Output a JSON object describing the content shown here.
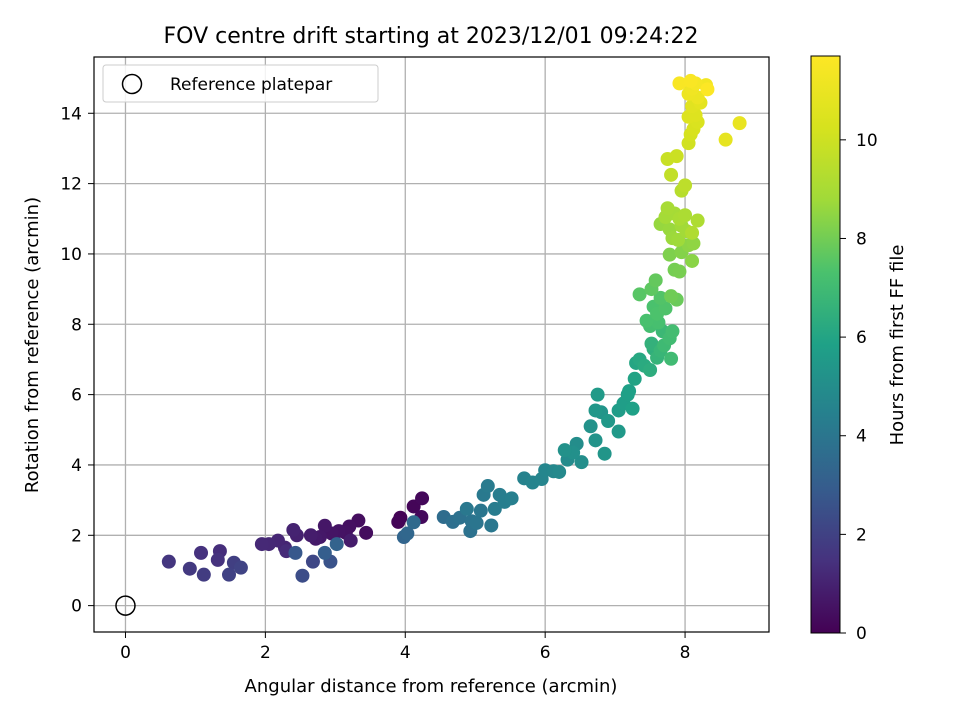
{
  "chart_data": {
    "type": "scatter",
    "title": "FOV centre drift starting at 2023/12/01 09:24:22",
    "xlabel": "Angular distance from reference (arcmin)",
    "ylabel": "Rotation from reference (arcmin)",
    "xlim": [
      -0.45,
      9.2
    ],
    "ylim": [
      -0.75,
      15.6
    ],
    "xticks": [
      0,
      2,
      4,
      6,
      8
    ],
    "yticks": [
      0,
      2,
      4,
      6,
      8,
      10,
      12,
      14
    ],
    "grid": true,
    "legend": {
      "position": "top-left",
      "entries": [
        "Reference platepar"
      ]
    },
    "reference_point": {
      "x": 0,
      "y": 0,
      "marker": "open-circle"
    },
    "colorbar": {
      "label": "Hours from first FF file",
      "range": [
        0,
        11.7
      ],
      "ticks": [
        0,
        2,
        4,
        6,
        8,
        10
      ],
      "colormap": "viridis"
    },
    "series": [
      {
        "columns": [
          "x",
          "y",
          "hours"
        ],
        "points": [
          [
            3.93,
            2.5,
            0.05
          ],
          [
            3.9,
            2.38,
            0.1
          ],
          [
            4.12,
            2.82,
            0.15
          ],
          [
            4.24,
            3.05,
            0.2
          ],
          [
            4.23,
            2.52,
            0.25
          ],
          [
            3.44,
            2.07,
            0.35
          ],
          [
            3.33,
            2.42,
            0.4
          ],
          [
            3.2,
            2.25,
            0.45
          ],
          [
            3.15,
            2.07,
            0.5
          ],
          [
            3.05,
            2.12,
            0.55
          ],
          [
            2.95,
            2.05,
            0.6
          ],
          [
            2.85,
            2.27,
            0.65
          ],
          [
            2.78,
            1.95,
            0.7
          ],
          [
            2.72,
            1.9,
            0.75
          ],
          [
            3.22,
            1.85,
            0.8
          ],
          [
            2.65,
            2.0,
            0.85
          ],
          [
            2.45,
            2.0,
            0.95
          ],
          [
            2.4,
            2.15,
            1.0
          ],
          [
            2.28,
            1.65,
            1.05
          ],
          [
            2.18,
            1.85,
            1.1
          ],
          [
            2.05,
            1.75,
            1.15
          ],
          [
            1.95,
            1.75,
            1.2
          ],
          [
            2.3,
            1.55,
            1.25
          ],
          [
            1.35,
            1.55,
            1.35
          ],
          [
            1.08,
            1.5,
            1.45
          ],
          [
            1.32,
            1.3,
            1.5
          ],
          [
            0.62,
            1.25,
            1.6
          ],
          [
            0.92,
            1.05,
            1.7
          ],
          [
            1.12,
            0.88,
            1.8
          ],
          [
            1.55,
            1.22,
            1.9
          ],
          [
            1.48,
            0.88,
            2.0
          ],
          [
            1.65,
            1.08,
            2.05
          ],
          [
            2.68,
            1.25,
            2.2
          ],
          [
            2.53,
            0.85,
            2.4
          ],
          [
            2.93,
            1.25,
            2.6
          ],
          [
            2.43,
            1.5,
            2.8
          ],
          [
            2.85,
            1.5,
            3.0
          ],
          [
            3.02,
            1.75,
            3.2
          ],
          [
            3.98,
            1.95,
            3.3
          ],
          [
            4.03,
            2.05,
            3.4
          ],
          [
            4.12,
            2.37,
            3.5
          ],
          [
            4.55,
            2.52,
            3.6
          ],
          [
            4.68,
            2.38,
            3.7
          ],
          [
            4.78,
            2.5,
            3.8
          ],
          [
            4.93,
            2.12,
            3.85
          ],
          [
            4.95,
            2.4,
            3.9
          ],
          [
            5.02,
            2.35,
            3.95
          ],
          [
            5.08,
            2.7,
            4.0
          ],
          [
            5.23,
            2.28,
            4.05
          ],
          [
            4.88,
            2.75,
            4.1
          ],
          [
            5.12,
            3.15,
            4.15
          ],
          [
            5.18,
            3.4,
            4.2
          ],
          [
            5.28,
            2.75,
            4.25
          ],
          [
            5.35,
            3.15,
            4.3
          ],
          [
            5.42,
            2.95,
            4.35
          ],
          [
            5.52,
            3.05,
            4.4
          ],
          [
            5.7,
            3.62,
            4.5
          ],
          [
            5.82,
            3.5,
            4.6
          ],
          [
            5.95,
            3.6,
            4.65
          ],
          [
            6.0,
            3.85,
            4.7
          ],
          [
            6.12,
            3.82,
            4.75
          ],
          [
            6.2,
            3.8,
            4.8
          ],
          [
            6.32,
            4.15,
            4.9
          ],
          [
            6.45,
            4.6,
            5.0
          ],
          [
            6.52,
            4.08,
            5.05
          ],
          [
            6.4,
            4.35,
            5.1
          ],
          [
            6.28,
            4.42,
            5.15
          ],
          [
            6.65,
            5.1,
            5.2
          ],
          [
            6.72,
            4.7,
            5.25
          ],
          [
            6.8,
            5.5,
            5.3
          ],
          [
            6.85,
            4.32,
            5.35
          ],
          [
            6.72,
            5.55,
            5.4
          ],
          [
            6.9,
            5.25,
            5.45
          ],
          [
            7.05,
            4.95,
            5.5
          ],
          [
            6.75,
            6.0,
            5.55
          ],
          [
            7.05,
            5.55,
            5.65
          ],
          [
            7.12,
            5.75,
            5.7
          ],
          [
            7.18,
            6.0,
            5.75
          ],
          [
            7.2,
            6.1,
            5.8
          ],
          [
            7.25,
            5.6,
            5.85
          ],
          [
            7.28,
            6.45,
            5.95
          ],
          [
            7.3,
            6.9,
            6.05
          ],
          [
            7.35,
            7.0,
            6.15
          ],
          [
            7.42,
            6.82,
            6.25
          ],
          [
            7.5,
            6.7,
            6.35
          ],
          [
            7.55,
            7.3,
            6.45
          ],
          [
            7.52,
            7.45,
            6.55
          ],
          [
            7.6,
            7.05,
            6.65
          ],
          [
            7.65,
            7.25,
            6.75
          ],
          [
            7.68,
            7.8,
            6.85
          ],
          [
            7.7,
            7.4,
            6.95
          ],
          [
            7.8,
            7.02,
            7.0
          ],
          [
            7.78,
            7.6,
            7.05
          ],
          [
            7.82,
            7.8,
            7.1
          ],
          [
            7.5,
            7.95,
            7.15
          ],
          [
            7.62,
            8.05,
            7.2
          ],
          [
            7.45,
            8.1,
            7.25
          ],
          [
            7.55,
            8.5,
            7.3
          ],
          [
            7.6,
            8.3,
            7.35
          ],
          [
            7.72,
            8.45,
            7.4
          ],
          [
            7.65,
            8.75,
            7.45
          ],
          [
            7.35,
            8.85,
            7.55
          ],
          [
            7.52,
            9.0,
            7.65
          ],
          [
            7.58,
            9.25,
            7.75
          ],
          [
            7.88,
            8.7,
            7.85
          ],
          [
            7.8,
            8.8,
            7.95
          ],
          [
            7.85,
            9.55,
            8.05
          ],
          [
            7.92,
            9.5,
            8.1
          ],
          [
            7.78,
            9.98,
            8.2
          ],
          [
            7.95,
            10.05,
            8.3
          ],
          [
            8.1,
            9.8,
            8.4
          ],
          [
            8.05,
            10.25,
            8.45
          ],
          [
            8.12,
            10.3,
            8.5
          ],
          [
            7.65,
            10.85,
            8.6
          ],
          [
            7.78,
            10.7,
            8.65
          ],
          [
            7.82,
            10.45,
            8.7
          ],
          [
            7.9,
            10.4,
            8.75
          ],
          [
            7.95,
            10.8,
            8.8
          ],
          [
            8.02,
            10.65,
            8.85
          ],
          [
            7.72,
            11.05,
            8.9
          ],
          [
            7.85,
            11.15,
            8.95
          ],
          [
            7.75,
            11.3,
            9.0
          ],
          [
            7.92,
            11.0,
            9.05
          ],
          [
            8.0,
            11.1,
            9.1
          ],
          [
            8.18,
            10.95,
            9.15
          ],
          [
            8.1,
            10.6,
            9.2
          ],
          [
            7.95,
            11.8,
            9.4
          ],
          [
            8.0,
            11.95,
            9.55
          ],
          [
            7.8,
            12.25,
            9.7
          ],
          [
            7.75,
            12.7,
            9.85
          ],
          [
            7.88,
            12.78,
            9.95
          ],
          [
            8.05,
            13.15,
            10.1
          ],
          [
            8.08,
            13.4,
            10.2
          ],
          [
            8.12,
            13.55,
            10.3
          ],
          [
            8.18,
            13.75,
            10.4
          ],
          [
            8.05,
            13.9,
            10.5
          ],
          [
            8.15,
            13.95,
            10.55
          ],
          [
            8.1,
            14.2,
            10.65
          ],
          [
            8.22,
            14.3,
            10.75
          ],
          [
            8.58,
            13.25,
            10.85
          ],
          [
            8.78,
            13.72,
            10.95
          ],
          [
            8.18,
            14.45,
            11.05
          ],
          [
            8.05,
            14.55,
            11.1
          ],
          [
            8.1,
            14.7,
            11.2
          ],
          [
            8.3,
            14.8,
            11.3
          ],
          [
            8.15,
            14.85,
            11.4
          ],
          [
            7.92,
            14.85,
            11.5
          ],
          [
            8.08,
            14.92,
            11.55
          ],
          [
            8.32,
            14.68,
            11.65
          ]
        ]
      }
    ]
  }
}
